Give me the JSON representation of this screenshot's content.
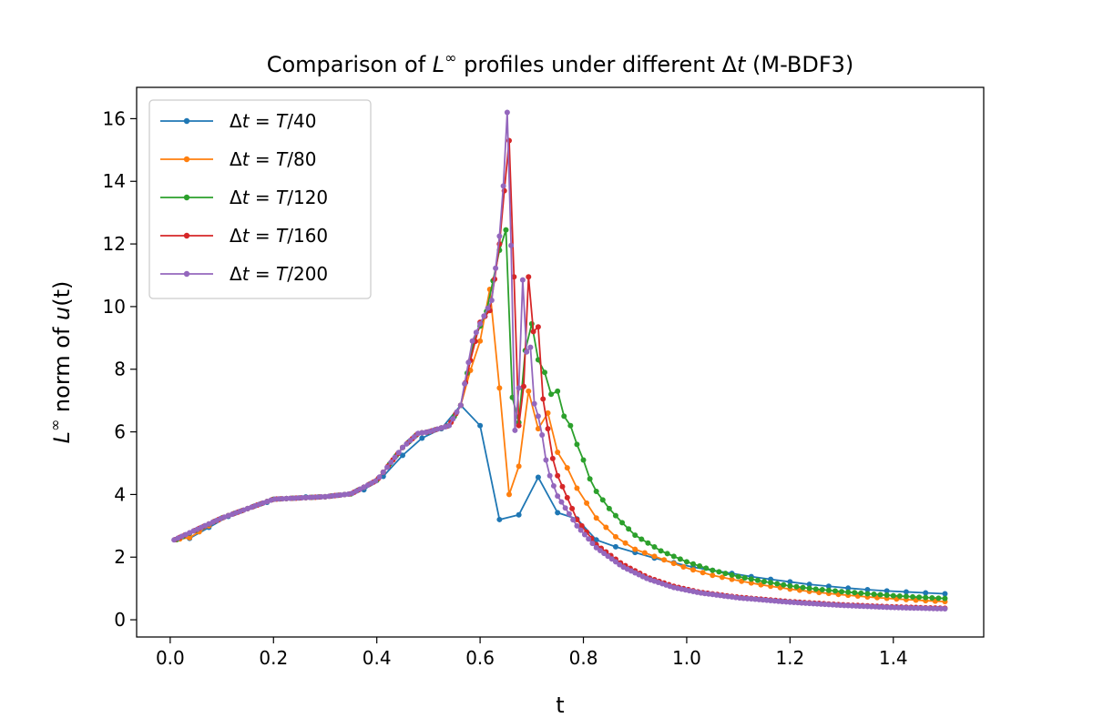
{
  "chart_data": {
    "type": "line",
    "title": "Comparison of L^∞ profiles under different Δt (M-BDF3)",
    "title_parts": {
      "pre": "Comparison of ",
      "italic": "L",
      "sup": "∞",
      "post": " profiles under different Δ",
      "italic2": "t",
      "tail": " (M-BDF3)"
    },
    "xlabel": "t",
    "ylabel": "L^∞ norm of u(t)",
    "ylabel_parts": {
      "italic": "L",
      "sup": "∞",
      "mid": " norm of ",
      "italic2": "u",
      "tail": "(t)"
    },
    "xlim": [
      -0.065,
      1.575
    ],
    "ylim": [
      -0.55,
      17.0
    ],
    "xticks": [
      0.0,
      0.2,
      0.4,
      0.6,
      0.8,
      1.0,
      1.2,
      1.4
    ],
    "xtick_labels": [
      "0.0",
      "0.2",
      "0.4",
      "0.6",
      "0.8",
      "1.0",
      "1.2",
      "1.4"
    ],
    "yticks": [
      0,
      2,
      4,
      6,
      8,
      10,
      12,
      14,
      16
    ],
    "ytick_labels": [
      "0",
      "2",
      "4",
      "6",
      "8",
      "10",
      "12",
      "14",
      "16"
    ],
    "grid": false,
    "legend_position": "upper-left",
    "series": [
      {
        "name": "Δt = T/40",
        "label_parts": {
          "pre": "Δ",
          "it": "t",
          "mid": " = ",
          "it2": "T",
          "tail": "/40"
        },
        "color": "#1f77b4",
        "step": 0.0375,
        "count": 40,
        "knots": [
          [
            0.0375,
            2.6
          ],
          [
            0.075,
            2.95
          ],
          [
            0.1125,
            3.3
          ],
          [
            0.15,
            3.55
          ],
          [
            0.1875,
            3.75
          ],
          [
            0.225,
            3.87
          ],
          [
            0.2625,
            3.92
          ],
          [
            0.3,
            3.93
          ],
          [
            0.3375,
            4.0
          ],
          [
            0.375,
            4.15
          ],
          [
            0.4125,
            4.58
          ],
          [
            0.45,
            5.25
          ],
          [
            0.4875,
            5.8
          ],
          [
            0.525,
            6.1
          ],
          [
            0.5625,
            6.85
          ],
          [
            0.6,
            6.2
          ],
          [
            0.6375,
            3.2
          ],
          [
            0.675,
            3.35
          ],
          [
            0.7125,
            4.55
          ],
          [
            0.75,
            3.42
          ],
          [
            0.7875,
            3.22
          ],
          [
            0.825,
            2.55
          ],
          [
            0.8625,
            2.33
          ],
          [
            0.9,
            2.15
          ],
          [
            0.9375,
            1.97
          ],
          [
            0.975,
            1.82
          ],
          [
            1.0125,
            1.68
          ],
          [
            1.05,
            1.58
          ],
          [
            1.0875,
            1.48
          ],
          [
            1.125,
            1.38
          ],
          [
            1.1625,
            1.29
          ],
          [
            1.2,
            1.21
          ],
          [
            1.2375,
            1.13
          ],
          [
            1.275,
            1.07
          ],
          [
            1.3125,
            1.01
          ],
          [
            1.35,
            0.96
          ],
          [
            1.3875,
            0.92
          ],
          [
            1.425,
            0.89
          ],
          [
            1.4625,
            0.86
          ],
          [
            1.5,
            0.83
          ]
        ]
      },
      {
        "name": "Δt = T/80",
        "label_parts": {
          "pre": "Δ",
          "it": "t",
          "mid": " = ",
          "it2": "T",
          "tail": "/80"
        },
        "color": "#ff7f0e",
        "step": 0.01875,
        "count": 80,
        "knots": [
          [
            0.01875,
            2.58
          ],
          [
            0.0375,
            2.62
          ],
          [
            0.1,
            3.25
          ],
          [
            0.2,
            3.85
          ],
          [
            0.3,
            3.93
          ],
          [
            0.35,
            4.02
          ],
          [
            0.4,
            4.45
          ],
          [
            0.45,
            5.5
          ],
          [
            0.48,
            5.95
          ],
          [
            0.5,
            6.0
          ],
          [
            0.54,
            6.2
          ],
          [
            0.5625,
            6.85
          ],
          [
            0.58,
            7.9
          ],
          [
            0.6,
            8.9
          ],
          [
            0.61875,
            10.55
          ],
          [
            0.6375,
            7.4
          ],
          [
            0.65625,
            4.0
          ],
          [
            0.675,
            4.9
          ],
          [
            0.69375,
            7.3
          ],
          [
            0.7125,
            6.1
          ],
          [
            0.73125,
            6.6
          ],
          [
            0.75,
            5.35
          ],
          [
            0.76875,
            4.85
          ],
          [
            0.7875,
            4.2
          ],
          [
            0.825,
            3.25
          ],
          [
            0.8625,
            2.65
          ],
          [
            0.9,
            2.25
          ],
          [
            0.95,
            1.95
          ],
          [
            1.0,
            1.65
          ],
          [
            1.05,
            1.42
          ],
          [
            1.1,
            1.25
          ],
          [
            1.15,
            1.1
          ],
          [
            1.2,
            0.98
          ],
          [
            1.25,
            0.88
          ],
          [
            1.3,
            0.8
          ],
          [
            1.35,
            0.73
          ],
          [
            1.4,
            0.67
          ],
          [
            1.45,
            0.62
          ],
          [
            1.5,
            0.58
          ]
        ]
      },
      {
        "name": "Δt = T/120",
        "label_parts": {
          "pre": "Δ",
          "it": "t",
          "mid": " = ",
          "it2": "T",
          "tail": "/120"
        },
        "color": "#2ca02c",
        "step": 0.0125,
        "count": 120,
        "knots": [
          [
            0.0125,
            2.56
          ],
          [
            0.1,
            3.25
          ],
          [
            0.2,
            3.85
          ],
          [
            0.3,
            3.93
          ],
          [
            0.35,
            4.02
          ],
          [
            0.4,
            4.45
          ],
          [
            0.45,
            5.5
          ],
          [
            0.48,
            5.95
          ],
          [
            0.5,
            6.0
          ],
          [
            0.54,
            6.2
          ],
          [
            0.5625,
            6.85
          ],
          [
            0.5875,
            8.9
          ],
          [
            0.6125,
            9.85
          ],
          [
            0.6375,
            11.8
          ],
          [
            0.65,
            12.45
          ],
          [
            0.6625,
            7.1
          ],
          [
            0.675,
            6.3
          ],
          [
            0.6875,
            8.6
          ],
          [
            0.7,
            9.45
          ],
          [
            0.7125,
            8.3
          ],
          [
            0.725,
            7.9
          ],
          [
            0.7375,
            7.2
          ],
          [
            0.75,
            7.3
          ],
          [
            0.7625,
            6.5
          ],
          [
            0.775,
            6.2
          ],
          [
            0.7875,
            5.6
          ],
          [
            0.8,
            5.1
          ],
          [
            0.8125,
            4.5
          ],
          [
            0.825,
            4.1
          ],
          [
            0.85,
            3.55
          ],
          [
            0.875,
            3.1
          ],
          [
            0.9,
            2.7
          ],
          [
            0.95,
            2.2
          ],
          [
            1.0,
            1.85
          ],
          [
            1.05,
            1.58
          ],
          [
            1.1,
            1.38
          ],
          [
            1.15,
            1.22
          ],
          [
            1.2,
            1.08
          ],
          [
            1.25,
            0.98
          ],
          [
            1.3,
            0.9
          ],
          [
            1.35,
            0.83
          ],
          [
            1.4,
            0.77
          ],
          [
            1.45,
            0.72
          ],
          [
            1.5,
            0.68
          ]
        ]
      },
      {
        "name": "Δt = T/160",
        "label_parts": {
          "pre": "Δ",
          "it": "t",
          "mid": " = ",
          "it2": "T",
          "tail": "/160"
        },
        "color": "#d62728",
        "step": 0.009375,
        "count": 160,
        "knots": [
          [
            0.009375,
            2.56
          ],
          [
            0.1,
            3.25
          ],
          [
            0.2,
            3.85
          ],
          [
            0.3,
            3.93
          ],
          [
            0.35,
            4.02
          ],
          [
            0.4,
            4.45
          ],
          [
            0.45,
            5.5
          ],
          [
            0.48,
            5.95
          ],
          [
            0.5,
            6.0
          ],
          [
            0.54,
            6.2
          ],
          [
            0.5625,
            6.85
          ],
          [
            0.58,
            8.2
          ],
          [
            0.6,
            9.5
          ],
          [
            0.62,
            9.9
          ],
          [
            0.6375,
            12.0
          ],
          [
            0.646875,
            13.7
          ],
          [
            0.65625,
            15.3
          ],
          [
            0.665625,
            10.95
          ],
          [
            0.675,
            6.2
          ],
          [
            0.684375,
            7.45
          ],
          [
            0.69375,
            10.95
          ],
          [
            0.703125,
            9.2
          ],
          [
            0.7125,
            9.35
          ],
          [
            0.721875,
            7.05
          ],
          [
            0.73125,
            6.1
          ],
          [
            0.740625,
            5.15
          ],
          [
            0.75,
            4.6
          ],
          [
            0.7875,
            3.2
          ],
          [
            0.825,
            2.4
          ],
          [
            0.875,
            1.78
          ],
          [
            0.925,
            1.35
          ],
          [
            0.975,
            1.07
          ],
          [
            1.025,
            0.88
          ],
          [
            1.1,
            0.72
          ],
          [
            1.2,
            0.58
          ],
          [
            1.3,
            0.48
          ],
          [
            1.4,
            0.41
          ],
          [
            1.5,
            0.37
          ]
        ]
      },
      {
        "name": "Δt = T/200",
        "label_parts": {
          "pre": "Δ",
          "it": "t",
          "mid": " = ",
          "it2": "T",
          "tail": "/200"
        },
        "color": "#9467bd",
        "step": 0.0075,
        "count": 200,
        "knots": [
          [
            0.0075,
            2.55
          ],
          [
            0.1,
            3.25
          ],
          [
            0.2,
            3.85
          ],
          [
            0.3,
            3.93
          ],
          [
            0.35,
            4.02
          ],
          [
            0.4,
            4.45
          ],
          [
            0.45,
            5.5
          ],
          [
            0.48,
            5.95
          ],
          [
            0.5,
            6.0
          ],
          [
            0.54,
            6.2
          ],
          [
            0.5625,
            6.85
          ],
          [
            0.585,
            8.9
          ],
          [
            0.6,
            9.45
          ],
          [
            0.6225,
            10.2
          ],
          [
            0.6375,
            12.25
          ],
          [
            0.645,
            13.85
          ],
          [
            0.6525,
            16.2
          ],
          [
            0.66,
            11.95
          ],
          [
            0.6675,
            6.05
          ],
          [
            0.675,
            7.4
          ],
          [
            0.6825,
            10.85
          ],
          [
            0.69,
            8.55
          ],
          [
            0.6975,
            8.7
          ],
          [
            0.705,
            6.9
          ],
          [
            0.7125,
            6.5
          ],
          [
            0.72,
            5.9
          ],
          [
            0.7275,
            5.1
          ],
          [
            0.735,
            4.6
          ],
          [
            0.75,
            3.95
          ],
          [
            0.7875,
            3.0
          ],
          [
            0.825,
            2.3
          ],
          [
            0.875,
            1.7
          ],
          [
            0.925,
            1.3
          ],
          [
            0.975,
            1.03
          ],
          [
            1.025,
            0.86
          ],
          [
            1.1,
            0.7
          ],
          [
            1.2,
            0.56
          ],
          [
            1.3,
            0.46
          ],
          [
            1.4,
            0.39
          ],
          [
            1.5,
            0.35
          ]
        ]
      }
    ]
  }
}
